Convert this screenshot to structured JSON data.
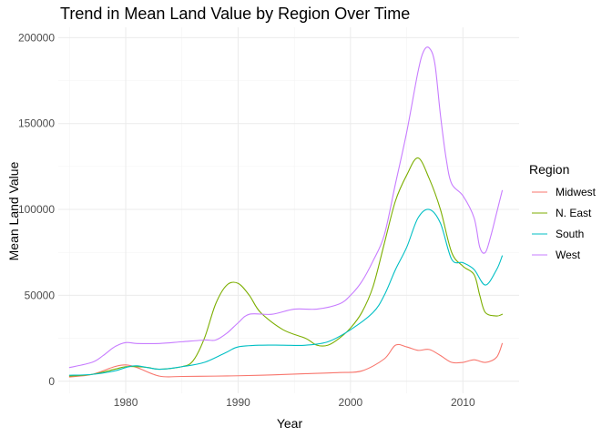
{
  "chart_data": {
    "type": "line",
    "title": "Trend in Mean Land Value by Region Over Time",
    "xlabel": "Year",
    "ylabel": "Mean Land Value",
    "xlim": [
      1974,
      2015
    ],
    "ylim": [
      -7000,
      206000
    ],
    "x_ticks": [
      1980,
      1990,
      2000,
      2010
    ],
    "y_ticks": [
      0,
      50000,
      100000,
      150000,
      200000
    ],
    "y_tick_labels": [
      "0",
      "50000",
      "100000",
      "150000",
      "200000"
    ],
    "grid": true,
    "legend": {
      "title": "Region",
      "position": "right"
    },
    "series": [
      {
        "name": "Midwest",
        "color": "#F8766D",
        "points": [
          [
            1975,
            2500
          ],
          [
            1977,
            4000
          ],
          [
            1979,
            8500
          ],
          [
            1980,
            9500
          ],
          [
            1981,
            8000
          ],
          [
            1983,
            3000
          ],
          [
            1985,
            2800
          ],
          [
            1988,
            3000
          ],
          [
            1990,
            3200
          ],
          [
            1993,
            3700
          ],
          [
            1996,
            4400
          ],
          [
            1999,
            5100
          ],
          [
            2001,
            6000
          ],
          [
            2003,
            13000
          ],
          [
            2004,
            21000
          ],
          [
            2005,
            20000
          ],
          [
            2006,
            18000
          ],
          [
            2007,
            18500
          ],
          [
            2008,
            15000
          ],
          [
            2009,
            11000
          ],
          [
            2010,
            11000
          ],
          [
            2011,
            12500
          ],
          [
            2012,
            11000
          ],
          [
            2013,
            14000
          ],
          [
            2013.5,
            22000
          ]
        ]
      },
      {
        "name": "N. East",
        "color": "#7CAE00",
        "points": [
          [
            1975,
            3000
          ],
          [
            1977,
            4000
          ],
          [
            1979,
            7000
          ],
          [
            1980,
            8500
          ],
          [
            1981,
            8500
          ],
          [
            1982,
            8000
          ],
          [
            1983,
            7000
          ],
          [
            1985,
            8500
          ],
          [
            1986,
            12000
          ],
          [
            1987,
            25000
          ],
          [
            1988,
            45000
          ],
          [
            1989,
            56000
          ],
          [
            1990,
            57000
          ],
          [
            1991,
            50000
          ],
          [
            1992,
            40000
          ],
          [
            1994,
            30000
          ],
          [
            1996,
            25000
          ],
          [
            1997,
            21000
          ],
          [
            1998,
            21000
          ],
          [
            1999,
            25000
          ],
          [
            2000,
            31000
          ],
          [
            2001,
            40000
          ],
          [
            2002,
            55000
          ],
          [
            2003,
            80000
          ],
          [
            2004,
            105000
          ],
          [
            2005,
            120000
          ],
          [
            2006,
            130000
          ],
          [
            2007,
            118000
          ],
          [
            2008,
            100000
          ],
          [
            2009,
            75000
          ],
          [
            2010,
            67000
          ],
          [
            2011,
            62000
          ],
          [
            2011.5,
            50000
          ],
          [
            2012,
            40000
          ],
          [
            2013,
            38000
          ],
          [
            2013.5,
            39000
          ]
        ]
      },
      {
        "name": "South",
        "color": "#00BFC4",
        "points": [
          [
            1975,
            3500
          ],
          [
            1977,
            4000
          ],
          [
            1979,
            6000
          ],
          [
            1980,
            8000
          ],
          [
            1981,
            9000
          ],
          [
            1983,
            7000
          ],
          [
            1985,
            8500
          ],
          [
            1987,
            11000
          ],
          [
            1989,
            17000
          ],
          [
            1990,
            20000
          ],
          [
            1992,
            21000
          ],
          [
            1994,
            21000
          ],
          [
            1996,
            21000
          ],
          [
            1998,
            23000
          ],
          [
            2000,
            30000
          ],
          [
            2002,
            40000
          ],
          [
            2003,
            50000
          ],
          [
            2004,
            65000
          ],
          [
            2005,
            78000
          ],
          [
            2006,
            95000
          ],
          [
            2007,
            100000
          ],
          [
            2008,
            92000
          ],
          [
            2009,
            71000
          ],
          [
            2010,
            69000
          ],
          [
            2011,
            65000
          ],
          [
            2012,
            56000
          ],
          [
            2013,
            65000
          ],
          [
            2013.5,
            73000
          ]
        ]
      },
      {
        "name": "West",
        "color": "#C77CFF",
        "points": [
          [
            1975,
            8000
          ],
          [
            1977,
            11000
          ],
          [
            1978,
            15000
          ],
          [
            1979,
            20000
          ],
          [
            1980,
            22500
          ],
          [
            1981,
            22000
          ],
          [
            1983,
            22000
          ],
          [
            1985,
            23000
          ],
          [
            1987,
            24000
          ],
          [
            1988,
            24000
          ],
          [
            1989,
            28000
          ],
          [
            1990,
            34000
          ],
          [
            1991,
            39000
          ],
          [
            1993,
            39000
          ],
          [
            1995,
            42000
          ],
          [
            1997,
            42000
          ],
          [
            1999,
            45000
          ],
          [
            2000,
            50000
          ],
          [
            2001,
            58000
          ],
          [
            2002,
            70000
          ],
          [
            2003,
            85000
          ],
          [
            2004,
            115000
          ],
          [
            2005,
            145000
          ],
          [
            2006,
            180000
          ],
          [
            2006.5,
            192000
          ],
          [
            2007,
            194000
          ],
          [
            2007.5,
            185000
          ],
          [
            2008,
            155000
          ],
          [
            2008.5,
            130000
          ],
          [
            2009,
            115000
          ],
          [
            2010,
            108000
          ],
          [
            2011,
            95000
          ],
          [
            2011.5,
            78000
          ],
          [
            2012,
            75000
          ],
          [
            2012.5,
            85000
          ],
          [
            2013,
            98000
          ],
          [
            2013.5,
            111000
          ]
        ]
      }
    ]
  }
}
